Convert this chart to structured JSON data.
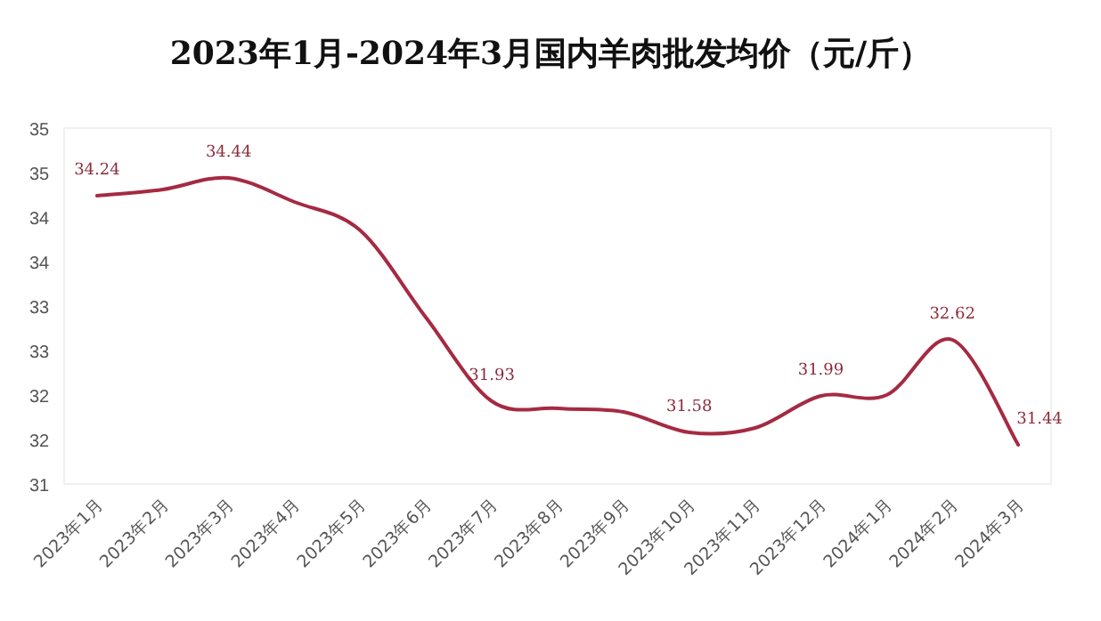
{
  "chart_data": {
    "type": "line",
    "title": "2023年1月-2024年3月国内羊肉批发均价（元/斤）",
    "categories": [
      "2023年1月",
      "2023年2月",
      "2023年3月",
      "2023年4月",
      "2023年5月",
      "2023年6月",
      "2023年7月",
      "2023年8月",
      "2023年9月",
      "2023年10月",
      "2023年11月",
      "2023年12月",
      "2024年1月",
      "2024年2月",
      "2024年3月"
    ],
    "series": [
      {
        "color": "#a52a42",
        "values": [
          34.24,
          34.31,
          34.44,
          34.17,
          33.85,
          32.87,
          31.93,
          31.85,
          31.81,
          31.58,
          31.63,
          31.99,
          32.0,
          32.62,
          31.44
        ],
        "value_labels": [
          "34.24",
          null,
          "34.44",
          null,
          null,
          null,
          "31.93",
          null,
          null,
          "31.58",
          null,
          "31.99",
          null,
          "32.62",
          "31.44"
        ]
      }
    ],
    "ylim": [
      31,
      35
    ],
    "yticks": [
      {
        "value": 31,
        "label": "31"
      },
      {
        "value": 31.5,
        "label": "32"
      },
      {
        "value": 32,
        "label": "32"
      },
      {
        "value": 32.5,
        "label": "33"
      },
      {
        "value": 33,
        "label": "33"
      },
      {
        "value": 33.5,
        "label": "34"
      },
      {
        "value": 34,
        "label": "34"
      },
      {
        "value": 34.5,
        "label": "35"
      },
      {
        "value": 35,
        "label": "35"
      }
    ],
    "marker": "none",
    "line_style": "solid"
  }
}
